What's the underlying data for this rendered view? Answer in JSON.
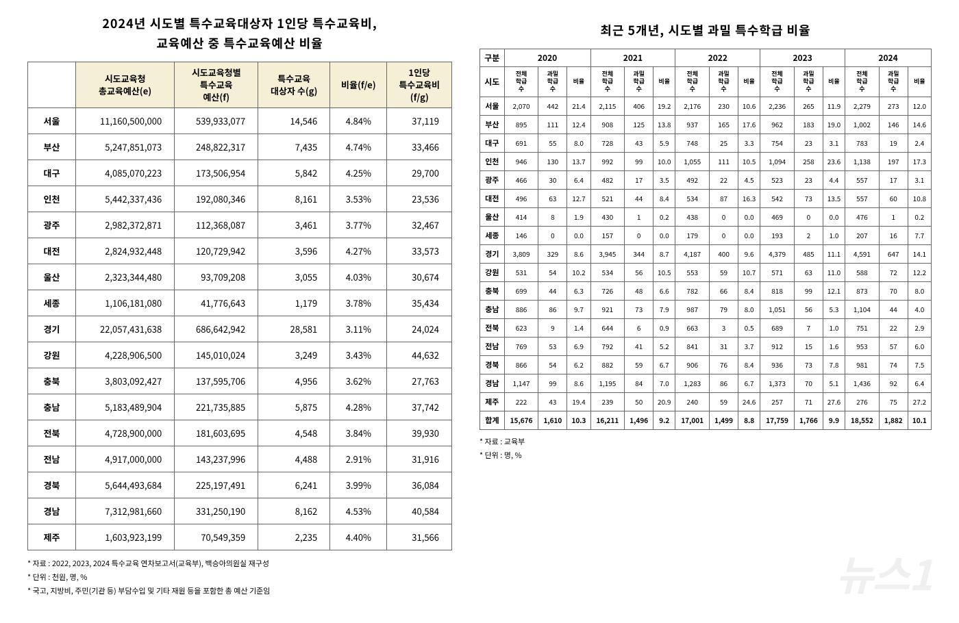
{
  "left": {
    "title_line1": "2024년 시도별 특수교육대상자 1인당 특수교육비,",
    "title_line2": "교육예산 중 특수교육예산 비율",
    "columns": [
      "",
      "시도교육청\n총교육예산(e)",
      "시도교육청별\n특수교육\n예산(f)",
      "특수교육\n대상자 수(g)",
      "비율(f/e)",
      "1인당\n특수교육비\n(f/g)"
    ],
    "rows": [
      [
        "서울",
        "11,160,500,000",
        "539,933,077",
        "14,546",
        "4.84%",
        "37,119"
      ],
      [
        "부산",
        "5,247,851,073",
        "248,822,317",
        "7,435",
        "4.74%",
        "33,466"
      ],
      [
        "대구",
        "4,085,070,223",
        "173,506,954",
        "5,842",
        "4.25%",
        "29,700"
      ],
      [
        "인천",
        "5,442,337,436",
        "192,080,346",
        "8,161",
        "3.53%",
        "23,536"
      ],
      [
        "광주",
        "2,982,372,871",
        "112,368,087",
        "3,461",
        "3.77%",
        "32,467"
      ],
      [
        "대전",
        "2,824,932,448",
        "120,729,942",
        "3,596",
        "4.27%",
        "33,573"
      ],
      [
        "울산",
        "2,323,344,480",
        "93,709,208",
        "3,055",
        "4.03%",
        "30,674"
      ],
      [
        "세종",
        "1,106,181,080",
        "41,776,643",
        "1,179",
        "3.78%",
        "35,434"
      ],
      [
        "경기",
        "22,057,431,638",
        "686,642,942",
        "28,581",
        "3.11%",
        "24,024"
      ],
      [
        "강원",
        "4,228,906,500",
        "145,010,024",
        "3,249",
        "3.43%",
        "44,632"
      ],
      [
        "충북",
        "3,803,092,427",
        "137,595,706",
        "4,956",
        "3.62%",
        "27,763"
      ],
      [
        "충남",
        "5,183,489,904",
        "221,735,885",
        "5,875",
        "4.28%",
        "37,742"
      ],
      [
        "전북",
        "4,728,900,000",
        "181,603,695",
        "4,548",
        "3.84%",
        "39,930"
      ],
      [
        "전남",
        "4,917,000,000",
        "143,237,996",
        "4,488",
        "2.91%",
        "31,916"
      ],
      [
        "경북",
        "5,644,493,684",
        "225,197,491",
        "6,241",
        "3.99%",
        "36,084"
      ],
      [
        "경남",
        "7,312,981,660",
        "331,250,190",
        "8,162",
        "4.53%",
        "40,584"
      ],
      [
        "제주",
        "1,603,923,199",
        "70,549,359",
        "2,235",
        "4.40%",
        "31,566"
      ]
    ],
    "footnotes": [
      "* 자료 : 2022, 2023, 2024 특수교육 연차보고서(교육부), 백승아의원실 재구성",
      "* 단위 : 천원, 명, %",
      "* 국고, 지방비, 주민(기관 등) 부담수입 및 기타 재원 등을 포함한 총 예산 기준임"
    ]
  },
  "right": {
    "title": "최근 5개년, 시도별 과밀 특수학급 비율",
    "gubun": "구분",
    "sido": "시도",
    "years": [
      "2020",
      "2021",
      "2022",
      "2023",
      "2024"
    ],
    "sub_headers": [
      "전체\n학급\n수",
      "과밀\n학급\n수",
      "비율"
    ],
    "rows": [
      [
        "서울",
        "2,070",
        "442",
        "21.4",
        "2,115",
        "406",
        "19.2",
        "2,176",
        "230",
        "10.6",
        "2,236",
        "265",
        "11.9",
        "2,279",
        "273",
        "12.0"
      ],
      [
        "부산",
        "895",
        "111",
        "12.4",
        "908",
        "125",
        "13.8",
        "937",
        "165",
        "17.6",
        "962",
        "183",
        "19.0",
        "1,002",
        "146",
        "14.6"
      ],
      [
        "대구",
        "691",
        "55",
        "8.0",
        "728",
        "43",
        "5.9",
        "748",
        "25",
        "3.3",
        "754",
        "23",
        "3.1",
        "783",
        "19",
        "2.4"
      ],
      [
        "인천",
        "946",
        "130",
        "13.7",
        "992",
        "99",
        "10.0",
        "1,055",
        "111",
        "10.5",
        "1,094",
        "258",
        "23.6",
        "1,138",
        "197",
        "17.3"
      ],
      [
        "광주",
        "466",
        "30",
        "6.4",
        "482",
        "17",
        "3.5",
        "492",
        "22",
        "4.5",
        "523",
        "23",
        "4.4",
        "557",
        "17",
        "3.1"
      ],
      [
        "대전",
        "496",
        "63",
        "12.7",
        "521",
        "44",
        "8.4",
        "534",
        "87",
        "16.3",
        "542",
        "73",
        "13.5",
        "557",
        "60",
        "10.8"
      ],
      [
        "울산",
        "414",
        "8",
        "1.9",
        "430",
        "1",
        "0.2",
        "438",
        "0",
        "0.0",
        "469",
        "0",
        "0.0",
        "476",
        "1",
        "0.2"
      ],
      [
        "세종",
        "146",
        "0",
        "0.0",
        "157",
        "0",
        "0.0",
        "179",
        "0",
        "0.0",
        "193",
        "2",
        "1.0",
        "207",
        "16",
        "7.7"
      ],
      [
        "경기",
        "3,809",
        "329",
        "8.6",
        "3,945",
        "344",
        "8.7",
        "4,187",
        "400",
        "9.6",
        "4,379",
        "485",
        "11.1",
        "4,591",
        "647",
        "14.1"
      ],
      [
        "강원",
        "531",
        "54",
        "10.2",
        "534",
        "56",
        "10.5",
        "553",
        "59",
        "10.7",
        "571",
        "63",
        "11.0",
        "588",
        "72",
        "12.2"
      ],
      [
        "충북",
        "699",
        "44",
        "6.3",
        "726",
        "48",
        "6.6",
        "782",
        "66",
        "8.4",
        "818",
        "99",
        "12.1",
        "873",
        "70",
        "8.0"
      ],
      [
        "충남",
        "886",
        "86",
        "9.7",
        "921",
        "73",
        "7.9",
        "987",
        "79",
        "8.0",
        "1,051",
        "56",
        "5.3",
        "1,104",
        "44",
        "4.0"
      ],
      [
        "전북",
        "623",
        "9",
        "1.4",
        "644",
        "6",
        "0.9",
        "663",
        "3",
        "0.5",
        "689",
        "7",
        "1.0",
        "751",
        "22",
        "2.9"
      ],
      [
        "전남",
        "769",
        "53",
        "6.9",
        "792",
        "41",
        "5.2",
        "841",
        "31",
        "3.7",
        "912",
        "15",
        "1.6",
        "953",
        "57",
        "6.0"
      ],
      [
        "경북",
        "866",
        "54",
        "6.2",
        "882",
        "59",
        "6.7",
        "906",
        "76",
        "8.4",
        "936",
        "73",
        "7.8",
        "981",
        "74",
        "7.5"
      ],
      [
        "경남",
        "1,147",
        "99",
        "8.6",
        "1,195",
        "84",
        "7.0",
        "1,283",
        "86",
        "6.7",
        "1,373",
        "70",
        "5.1",
        "1,436",
        "92",
        "6.4"
      ],
      [
        "제주",
        "222",
        "43",
        "19.4",
        "239",
        "50",
        "20.9",
        "240",
        "59",
        "24.6",
        "257",
        "71",
        "27.6",
        "276",
        "75",
        "27.2"
      ]
    ],
    "total": [
      "합계",
      "15,676",
      "1,610",
      "10.3",
      "16,211",
      "1,496",
      "9.2",
      "17,001",
      "1,499",
      "8.8",
      "17,759",
      "1,766",
      "9.9",
      "18,552",
      "1,882",
      "10.1"
    ],
    "footnotes": [
      "* 자료 : 교육부",
      "* 단위 : 명, %"
    ]
  },
  "watermark": "뉴스1"
}
